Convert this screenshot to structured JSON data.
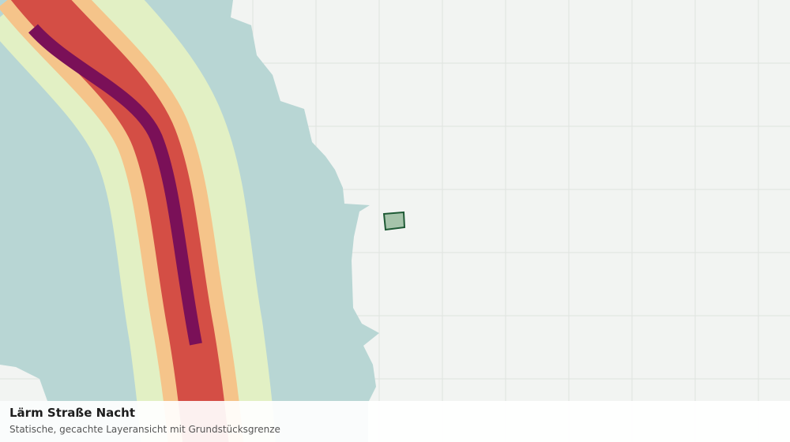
{
  "panel": {
    "title": "Lärm Straße Nacht",
    "subtitle": "Statische, gecachte Layeransicht mit Grundstücksgrenze"
  }
}
